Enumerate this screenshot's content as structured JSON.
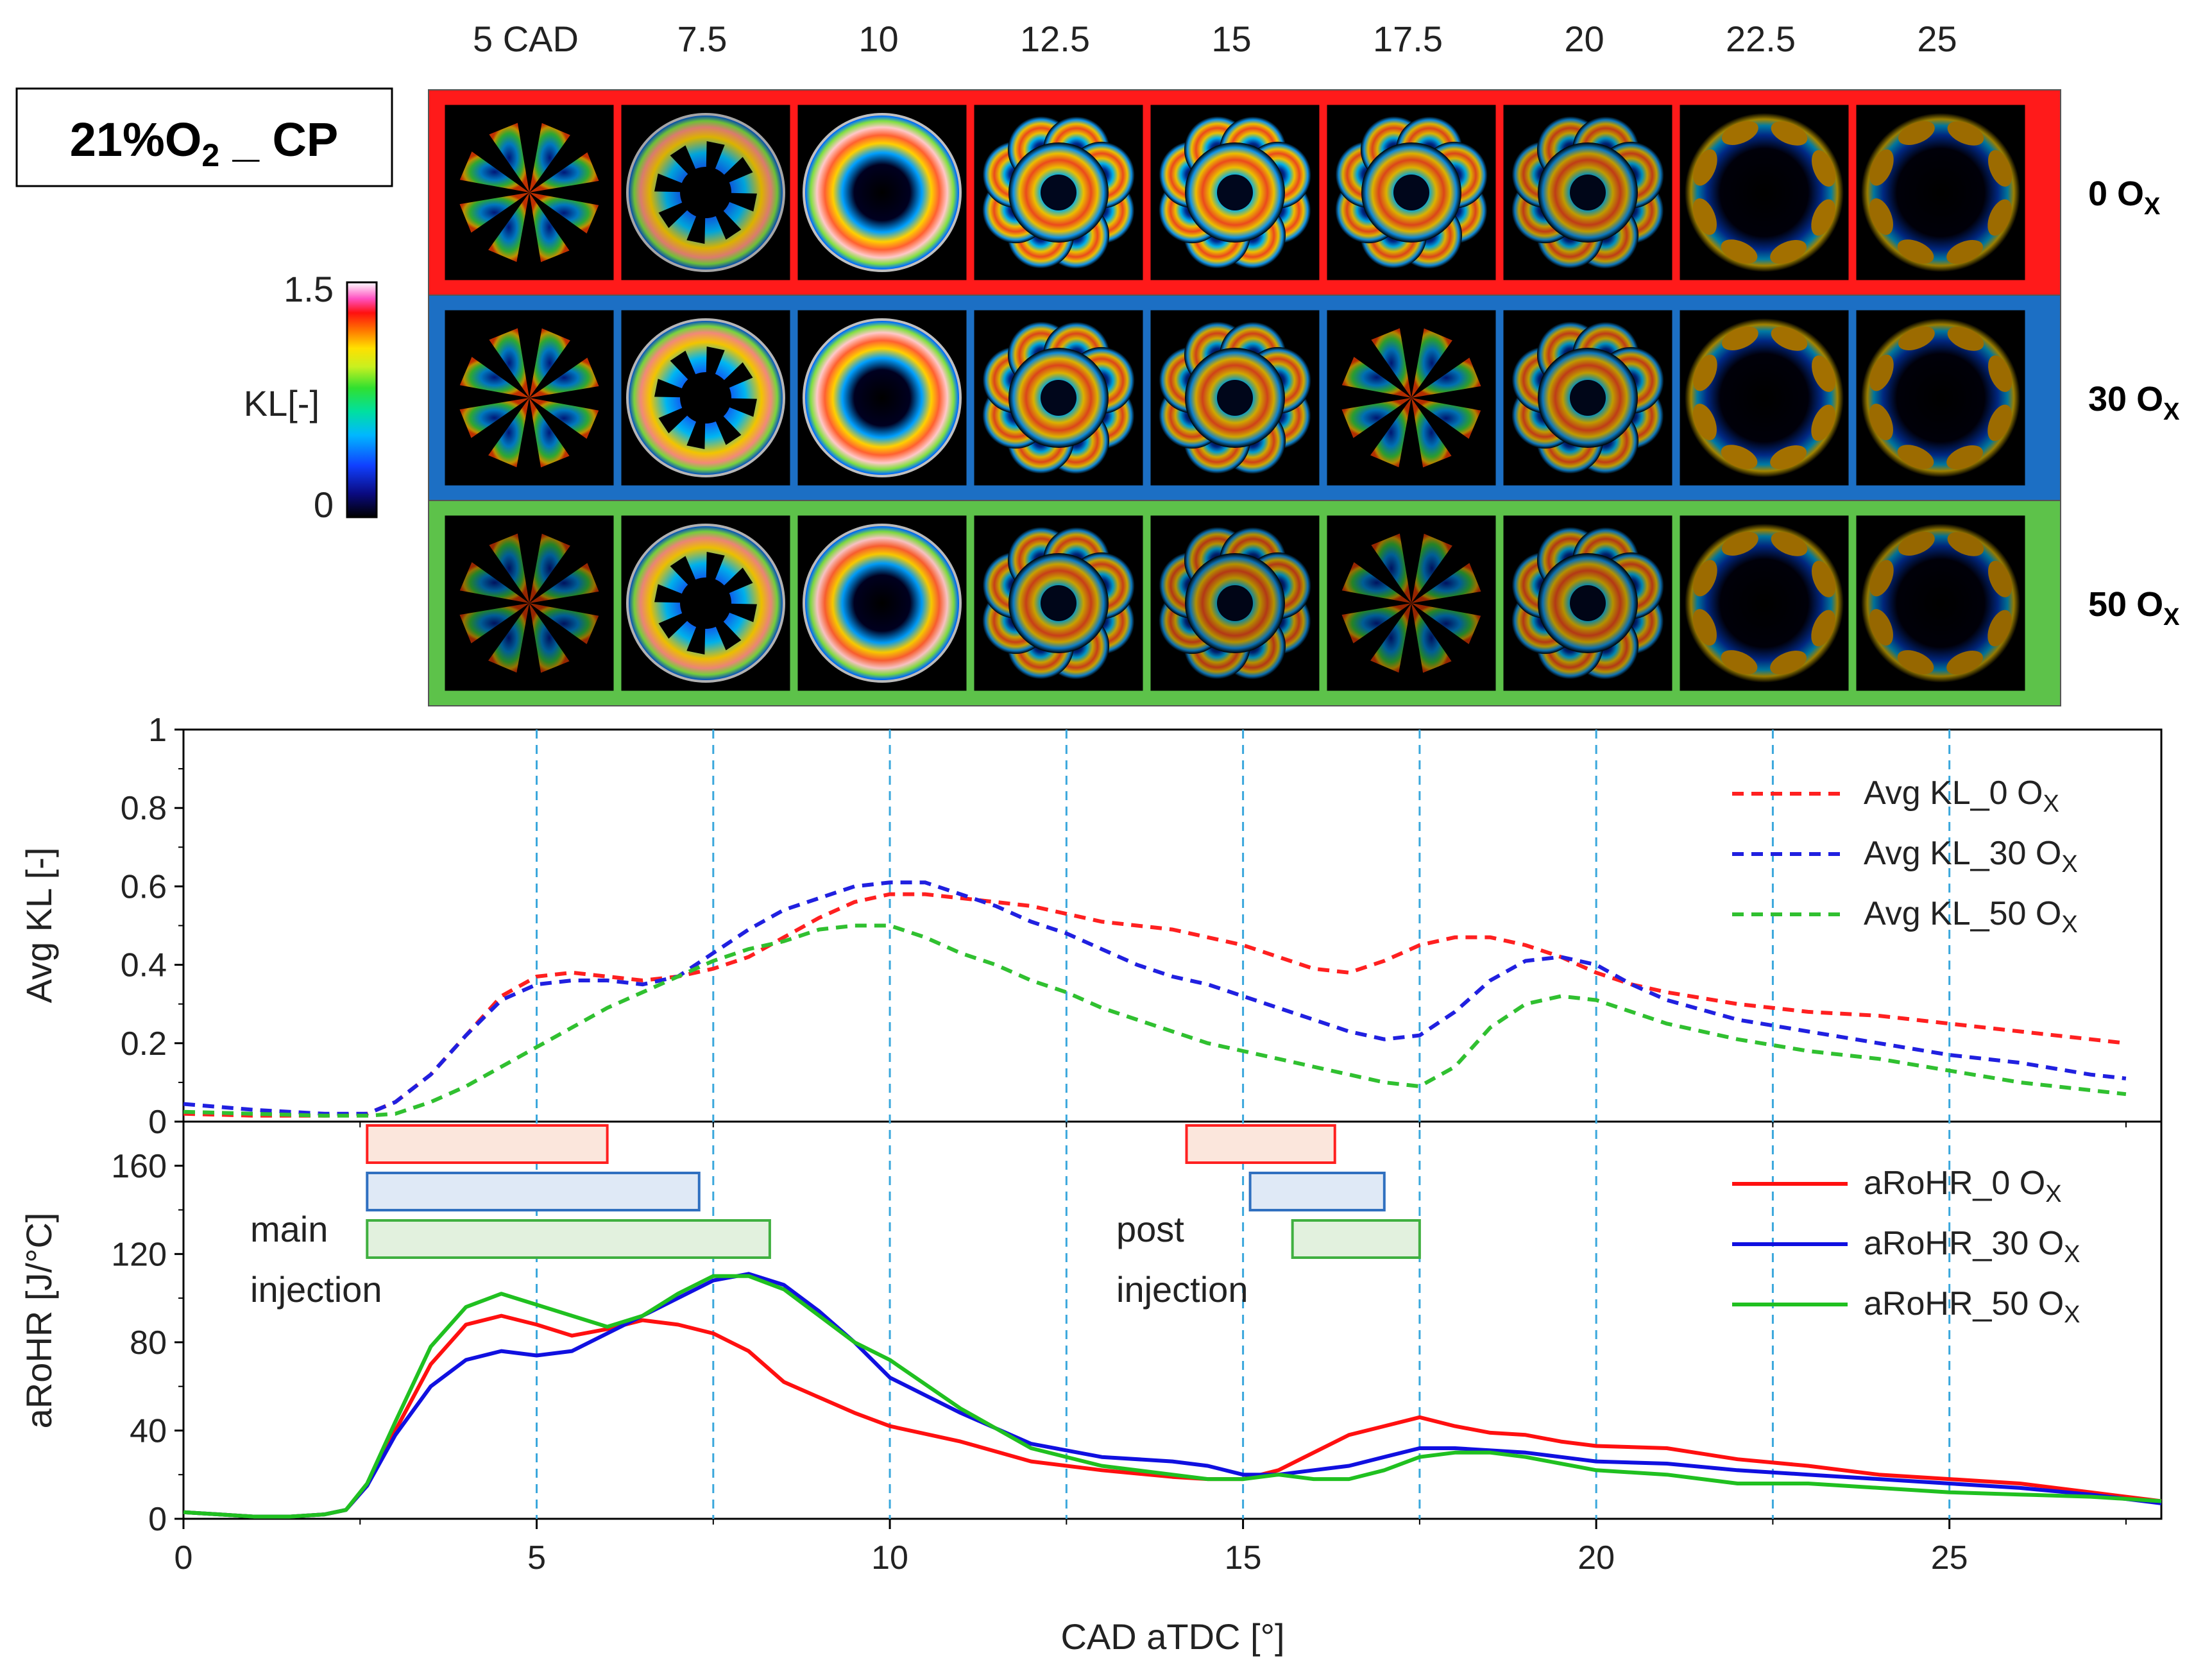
{
  "figure": {
    "condition_main": "21%O",
    "condition_sub": "2",
    "condition_suffix": " _ CP",
    "row_labels": [
      {
        "main": "0 O",
        "sub": "X"
      },
      {
        "main": "30 O",
        "sub": "X"
      },
      {
        "main": "50 O",
        "sub": "X"
      }
    ],
    "column_labels": [
      "5 CAD",
      "7.5",
      "10",
      "12.5",
      "15",
      "17.5",
      "20",
      "22.5",
      "25"
    ],
    "colorbar": {
      "label": "KL[-]",
      "max_label": "1.5",
      "min_label": "0",
      "min": 0,
      "max": 1.5
    },
    "row_colors": [
      "#ff1a1a",
      "#1c6fc4",
      "#5dc24a"
    ],
    "image_intensity": [
      [
        0.55,
        0.75,
        1.0,
        0.85,
        0.85,
        0.75,
        0.55,
        0.35,
        0.3
      ],
      [
        0.55,
        0.9,
        1.0,
        0.75,
        0.65,
        0.45,
        0.55,
        0.35,
        0.3
      ],
      [
        0.25,
        0.85,
        0.95,
        0.6,
        0.45,
        0.25,
        0.45,
        0.3,
        0.25
      ]
    ],
    "image_pattern": [
      [
        "star",
        "ring-star",
        "ring",
        "flower",
        "flower",
        "flower",
        "flower",
        "rim",
        "rim"
      ],
      [
        "star",
        "ring-star",
        "ring",
        "flower",
        "flower",
        "star",
        "flower",
        "rim",
        "rim"
      ],
      [
        "star",
        "ring-star",
        "ring",
        "flower",
        "flower",
        "star",
        "flower",
        "rim",
        "rim"
      ]
    ]
  },
  "chart_data": [
    {
      "type": "line",
      "title": "",
      "xlabel": "CAD aTDC [°]",
      "ylabel": "Avg KL [-]",
      "xlim": [
        0,
        28
      ],
      "ylim": [
        0,
        1
      ],
      "yticks": [
        "0",
        "0.2",
        "0.4",
        "0.6",
        "0.8",
        "1"
      ],
      "line_style": "dashed",
      "legend_position": "top-right",
      "series": [
        {
          "name": "Avg KL_0 O",
          "name_sub": "X",
          "color": "#ff2020",
          "x": [
            0,
            1,
            2,
            2.6,
            3,
            3.5,
            4,
            4.5,
            5,
            5.5,
            6,
            6.5,
            7,
            7.5,
            8,
            8.5,
            9,
            9.5,
            10,
            10.5,
            11,
            11.5,
            12,
            12.5,
            13,
            13.5,
            14,
            14.5,
            15,
            15.5,
            16,
            16.5,
            17,
            17.5,
            18,
            18.5,
            19,
            19.5,
            20,
            20.5,
            21,
            22,
            23,
            24,
            25,
            26,
            27,
            27.5
          ],
          "y": [
            0.02,
            0.015,
            0.015,
            0.02,
            0.05,
            0.12,
            0.22,
            0.32,
            0.37,
            0.38,
            0.37,
            0.36,
            0.37,
            0.39,
            0.42,
            0.47,
            0.52,
            0.56,
            0.58,
            0.58,
            0.57,
            0.56,
            0.55,
            0.53,
            0.51,
            0.5,
            0.49,
            0.47,
            0.45,
            0.42,
            0.39,
            0.38,
            0.41,
            0.45,
            0.47,
            0.47,
            0.45,
            0.42,
            0.38,
            0.35,
            0.33,
            0.3,
            0.28,
            0.27,
            0.25,
            0.23,
            0.21,
            0.2
          ]
        },
        {
          "name": "Avg KL_30 O",
          "name_sub": "X",
          "color": "#2020e0",
          "x": [
            0,
            1,
            2,
            2.6,
            3,
            3.5,
            4,
            4.5,
            5,
            5.5,
            6,
            6.5,
            7,
            7.5,
            8,
            8.5,
            9,
            9.5,
            10,
            10.5,
            11,
            11.5,
            12,
            12.5,
            13,
            13.5,
            14,
            14.5,
            15,
            15.5,
            16,
            16.5,
            17,
            17.5,
            18,
            18.5,
            19,
            19.5,
            20,
            20.5,
            21,
            22,
            23,
            24,
            25,
            26,
            27,
            27.5
          ],
          "y": [
            0.045,
            0.03,
            0.02,
            0.02,
            0.05,
            0.12,
            0.22,
            0.31,
            0.35,
            0.36,
            0.36,
            0.35,
            0.37,
            0.43,
            0.49,
            0.54,
            0.57,
            0.6,
            0.61,
            0.61,
            0.58,
            0.55,
            0.51,
            0.48,
            0.44,
            0.4,
            0.37,
            0.35,
            0.32,
            0.29,
            0.26,
            0.23,
            0.21,
            0.22,
            0.28,
            0.36,
            0.41,
            0.42,
            0.4,
            0.35,
            0.31,
            0.26,
            0.23,
            0.2,
            0.17,
            0.15,
            0.12,
            0.11
          ]
        },
        {
          "name": "Avg KL_50 O",
          "name_sub": "X",
          "color": "#30c030",
          "x": [
            0,
            1,
            2,
            2.6,
            3,
            3.5,
            4,
            4.5,
            5,
            5.5,
            6,
            6.5,
            7,
            7.5,
            8,
            8.5,
            9,
            9.5,
            10,
            10.5,
            11,
            11.5,
            12,
            12.5,
            13,
            13.5,
            14,
            14.5,
            15,
            15.5,
            16,
            16.5,
            17,
            17.5,
            18,
            18.5,
            19,
            19.5,
            20,
            20.5,
            21,
            22,
            23,
            24,
            25,
            26,
            27,
            27.5
          ],
          "y": [
            0.025,
            0.02,
            0.015,
            0.015,
            0.02,
            0.05,
            0.09,
            0.14,
            0.19,
            0.24,
            0.29,
            0.33,
            0.37,
            0.41,
            0.44,
            0.46,
            0.49,
            0.5,
            0.5,
            0.47,
            0.43,
            0.4,
            0.36,
            0.33,
            0.29,
            0.26,
            0.23,
            0.2,
            0.18,
            0.16,
            0.14,
            0.12,
            0.1,
            0.09,
            0.14,
            0.24,
            0.3,
            0.32,
            0.31,
            0.28,
            0.25,
            0.21,
            0.18,
            0.16,
            0.13,
            0.1,
            0.08,
            0.07
          ]
        }
      ]
    },
    {
      "type": "line",
      "title": "",
      "xlabel": "CAD aTDC [°]",
      "ylabel": "aRoHR [J/°C]",
      "xlim": [
        0,
        28
      ],
      "ylim": [
        0,
        180
      ],
      "xticks": [
        "0",
        "5",
        "10",
        "15",
        "20",
        "25"
      ],
      "yticks": [
        "0",
        "40",
        "80",
        "120",
        "160"
      ],
      "line_style": "solid",
      "legend_position": "top-right",
      "series": [
        {
          "name": "aRoHR_0 O",
          "name_sub": "X",
          "color": "#ff1010",
          "x": [
            0,
            0.5,
            1,
            1.5,
            2,
            2.3,
            2.6,
            3,
            3.5,
            4,
            4.5,
            5,
            5.5,
            6,
            6.5,
            7,
            7.5,
            8,
            8.5,
            9,
            9.5,
            10,
            11,
            12,
            13,
            14,
            14.5,
            15,
            15.5,
            16,
            16.5,
            17,
            17.5,
            18,
            18.5,
            19,
            19.5,
            20,
            21,
            22,
            23,
            24,
            25,
            26,
            27,
            28
          ],
          "y": [
            3,
            2,
            1,
            1,
            2,
            4,
            15,
            40,
            70,
            88,
            92,
            88,
            83,
            86,
            90,
            88,
            84,
            76,
            62,
            55,
            48,
            42,
            35,
            26,
            22,
            19,
            18,
            18,
            22,
            30,
            38,
            42,
            46,
            42,
            39,
            38,
            35,
            33,
            32,
            27,
            24,
            20,
            18,
            16,
            12,
            8
          ]
        },
        {
          "name": "aRoHR_30 O",
          "name_sub": "X",
          "color": "#1010e0",
          "x": [
            0,
            0.5,
            1,
            1.5,
            2,
            2.3,
            2.6,
            3,
            3.5,
            4,
            4.5,
            5,
            5.5,
            6,
            6.5,
            7,
            7.5,
            8,
            8.5,
            9,
            9.5,
            10,
            11,
            12,
            13,
            14,
            14.5,
            15,
            15.5,
            16,
            16.5,
            17,
            17.5,
            18,
            18.5,
            19,
            19.5,
            20,
            21,
            22,
            23,
            24,
            25,
            26,
            27,
            28
          ],
          "y": [
            3,
            2,
            1,
            1,
            2,
            4,
            15,
            38,
            60,
            72,
            76,
            74,
            76,
            84,
            92,
            100,
            108,
            111,
            106,
            94,
            80,
            64,
            48,
            34,
            28,
            26,
            24,
            20,
            20,
            22,
            24,
            28,
            32,
            32,
            31,
            30,
            28,
            26,
            25,
            22,
            20,
            18,
            16,
            14,
            11,
            7
          ]
        },
        {
          "name": "aRoHR_50 O",
          "name_sub": "X",
          "color": "#20c020",
          "x": [
            0,
            0.5,
            1,
            1.5,
            2,
            2.3,
            2.6,
            3,
            3.5,
            4,
            4.5,
            5,
            5.5,
            6,
            6.5,
            7,
            7.5,
            8,
            8.5,
            9,
            9.5,
            10,
            11,
            12,
            13,
            14,
            14.5,
            15,
            15.5,
            16,
            16.5,
            17,
            17.5,
            18,
            18.5,
            19,
            19.5,
            20,
            21,
            22,
            23,
            24,
            25,
            26,
            27,
            28
          ],
          "y": [
            3,
            2,
            1,
            1,
            2,
            4,
            16,
            44,
            78,
            96,
            102,
            97,
            92,
            87,
            92,
            102,
            110,
            110,
            104,
            92,
            80,
            72,
            50,
            32,
            24,
            20,
            18,
            18,
            20,
            18,
            18,
            22,
            28,
            30,
            30,
            28,
            25,
            22,
            20,
            16,
            16,
            14,
            12,
            11,
            10,
            8
          ]
        }
      ],
      "injection_bars": [
        {
          "row": 0,
          "start": 2.6,
          "end": 6.0,
          "color": "#ff2020",
          "fill": "#fbe6dc"
        },
        {
          "row": 1,
          "start": 2.6,
          "end": 7.3,
          "color": "#3070c0",
          "fill": "#dfe9f6"
        },
        {
          "row": 2,
          "start": 2.6,
          "end": 8.3,
          "color": "#40b040",
          "fill": "#e2f1de"
        },
        {
          "row": 0,
          "start": 14.2,
          "end": 16.3,
          "color": "#ff2020",
          "fill": "#fbe6dc"
        },
        {
          "row": 1,
          "start": 15.1,
          "end": 17.0,
          "color": "#3070c0",
          "fill": "#dfe9f6"
        },
        {
          "row": 2,
          "start": 15.7,
          "end": 17.5,
          "color": "#40b040",
          "fill": "#e2f1de"
        }
      ],
      "annotations": [
        {
          "line1": "main",
          "line2": "injection"
        },
        {
          "line1": "post",
          "line2": "injection"
        }
      ]
    }
  ],
  "vertical_guides": [
    5,
    7.5,
    10,
    12.5,
    15,
    17.5,
    20,
    22.5,
    25
  ],
  "guide_color": "#3aa7dc"
}
